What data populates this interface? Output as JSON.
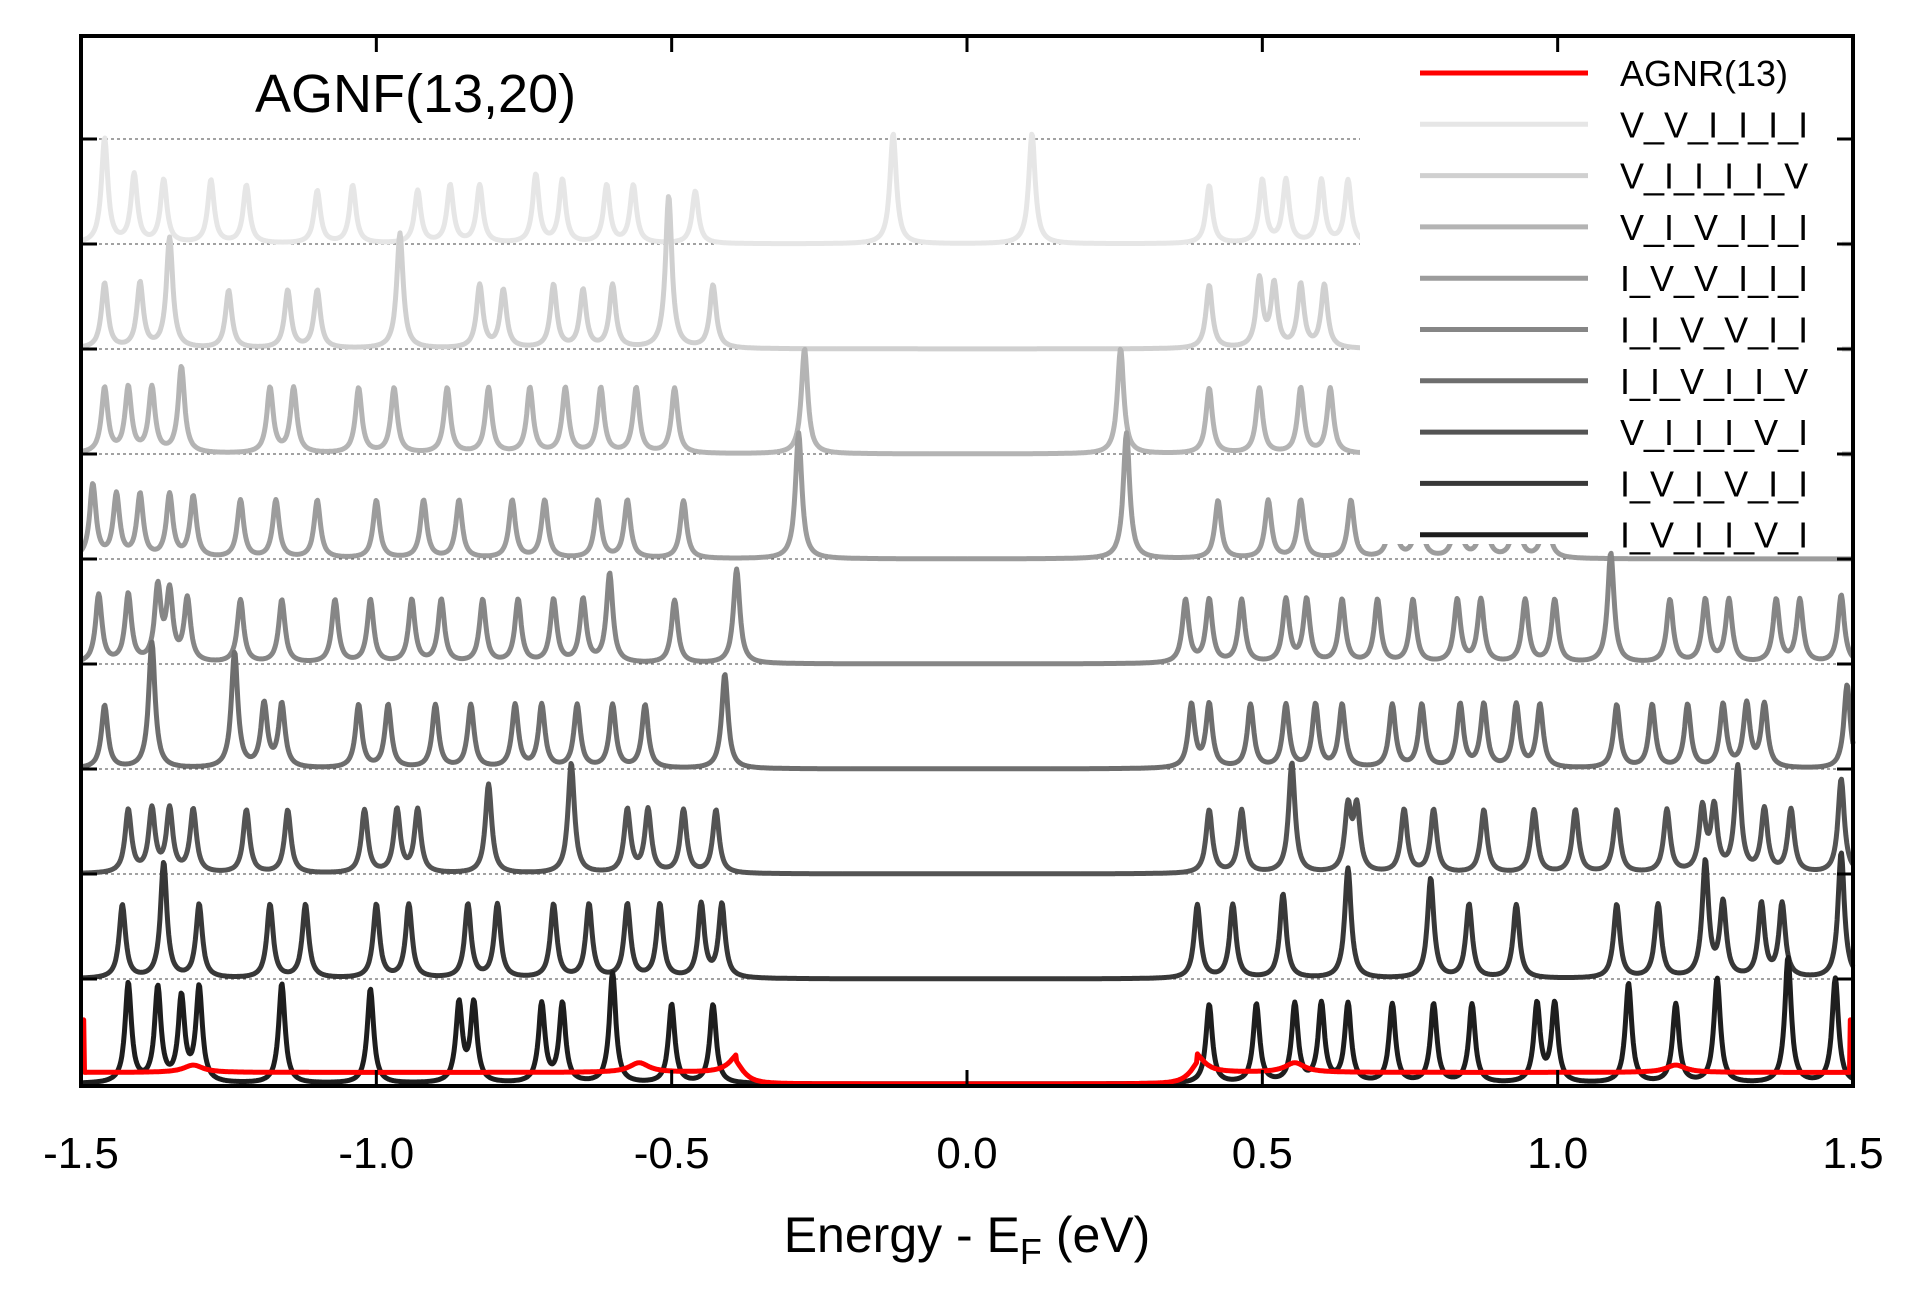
{
  "chart_data": {
    "type": "line",
    "title": "AGNF(13,20)",
    "xlabel_main": "Energy - E",
    "xlabel_sub": "F",
    "xlabel_tail": " (eV)",
    "ylabel": "",
    "xlim": [
      -1.5,
      1.5
    ],
    "x_ticks": [
      -1.5,
      -1.0,
      -0.5,
      0.0,
      0.5,
      1.0,
      1.5
    ],
    "x_tick_labels": [
      "-1.5",
      "-1.0",
      "-0.5",
      "0.0",
      "0.5",
      "1.0",
      "1.5"
    ],
    "y_tick_labels_shown": false,
    "offset_step": 1,
    "legend_position": "top-right",
    "series": [
      {
        "name": "AGNR(13)",
        "color": "#ff0000",
        "offset": 0,
        "kind": "band",
        "band_edge": 0.39,
        "peaks": [
          [
            -1.31,
            0.2
          ],
          [
            -0.555,
            0.26
          ],
          [
            -0.39,
            0.3
          ],
          [
            0.39,
            0.3
          ],
          [
            0.555,
            0.26
          ],
          [
            1.2,
            0.2
          ]
        ]
      },
      {
        "name": "V_V_I_I_I_I",
        "color": "#e6e6e6",
        "offset": 8,
        "peaks": [
          [
            -1.46,
            1.0
          ],
          [
            -1.41,
            0.65
          ],
          [
            -1.36,
            0.6
          ],
          [
            -1.28,
            0.6
          ],
          [
            -1.22,
            0.55
          ],
          [
            -1.1,
            0.5
          ],
          [
            -1.04,
            0.55
          ],
          [
            -0.93,
            0.5
          ],
          [
            -0.875,
            0.55
          ],
          [
            -0.825,
            0.55
          ],
          [
            -0.73,
            0.65
          ],
          [
            -0.685,
            0.6
          ],
          [
            -0.61,
            0.55
          ],
          [
            -0.565,
            0.55
          ],
          [
            -0.46,
            0.5
          ],
          [
            -0.125,
            1.05
          ],
          [
            0.11,
            1.05
          ],
          [
            0.41,
            0.55
          ],
          [
            0.5,
            0.6
          ],
          [
            0.54,
            0.6
          ],
          [
            0.6,
            0.6
          ],
          [
            0.645,
            0.6
          ]
        ]
      },
      {
        "name": "V_I_I_I_I_V",
        "color": "#d0d0d0",
        "offset": 7,
        "peaks": [
          [
            -1.46,
            0.62
          ],
          [
            -1.4,
            0.62
          ],
          [
            -1.35,
            1.05
          ],
          [
            -1.25,
            0.55
          ],
          [
            -1.15,
            0.55
          ],
          [
            -1.1,
            0.55
          ],
          [
            -0.96,
            1.1
          ],
          [
            -0.825,
            0.6
          ],
          [
            -0.785,
            0.55
          ],
          [
            -0.7,
            0.6
          ],
          [
            -0.65,
            0.55
          ],
          [
            -0.6,
            0.6
          ],
          [
            -0.505,
            1.45
          ],
          [
            -0.43,
            0.6
          ],
          [
            0.41,
            0.6
          ],
          [
            0.495,
            0.65
          ],
          [
            0.52,
            0.6
          ],
          [
            0.565,
            0.6
          ],
          [
            0.605,
            0.6
          ]
        ]
      },
      {
        "name": "V_I_V_I_I_I",
        "color": "#b4b4b4",
        "offset": 6,
        "peaks": [
          [
            -1.46,
            0.62
          ],
          [
            -1.42,
            0.62
          ],
          [
            -1.38,
            0.62
          ],
          [
            -1.33,
            0.82
          ],
          [
            -1.18,
            0.62
          ],
          [
            -1.14,
            0.62
          ],
          [
            -1.03,
            0.62
          ],
          [
            -0.97,
            0.62
          ],
          [
            -0.88,
            0.62
          ],
          [
            -0.81,
            0.62
          ],
          [
            -0.74,
            0.62
          ],
          [
            -0.68,
            0.62
          ],
          [
            -0.62,
            0.62
          ],
          [
            -0.56,
            0.62
          ],
          [
            -0.495,
            0.62
          ],
          [
            -0.275,
            1.0
          ],
          [
            0.26,
            1.0
          ],
          [
            0.41,
            0.62
          ],
          [
            0.495,
            0.62
          ],
          [
            0.565,
            0.62
          ],
          [
            0.615,
            0.62
          ]
        ]
      },
      {
        "name": "I_V_V_I_I_I",
        "color": "#9c9c9c",
        "offset": 5,
        "peaks": [
          [
            -1.48,
            0.7
          ],
          [
            -1.44,
            0.6
          ],
          [
            -1.4,
            0.6
          ],
          [
            -1.35,
            0.6
          ],
          [
            -1.31,
            0.58
          ],
          [
            -1.23,
            0.55
          ],
          [
            -1.17,
            0.55
          ],
          [
            -1.1,
            0.55
          ],
          [
            -1.0,
            0.55
          ],
          [
            -0.92,
            0.55
          ],
          [
            -0.86,
            0.55
          ],
          [
            -0.77,
            0.55
          ],
          [
            -0.715,
            0.55
          ],
          [
            -0.625,
            0.55
          ],
          [
            -0.575,
            0.55
          ],
          [
            -0.48,
            0.55
          ],
          [
            -0.285,
            1.2
          ],
          [
            0.27,
            1.2
          ],
          [
            0.425,
            0.55
          ],
          [
            0.51,
            0.55
          ],
          [
            0.565,
            0.55
          ],
          [
            0.65,
            0.55
          ],
          [
            0.72,
            0.55
          ],
          [
            0.765,
            0.55
          ],
          [
            0.83,
            0.55
          ],
          [
            0.875,
            0.55
          ],
          [
            0.93,
            0.55
          ],
          [
            0.98,
            0.55
          ]
        ]
      },
      {
        "name": "I_I_V_V_I_I",
        "color": "#868686",
        "offset": 4,
        "peaks": [
          [
            -1.47,
            0.65
          ],
          [
            -1.42,
            0.65
          ],
          [
            -1.37,
            0.7
          ],
          [
            -1.35,
            0.65
          ],
          [
            -1.32,
            0.6
          ],
          [
            -1.23,
            0.6
          ],
          [
            -1.16,
            0.6
          ],
          [
            -1.07,
            0.6
          ],
          [
            -1.01,
            0.6
          ],
          [
            -0.94,
            0.6
          ],
          [
            -0.89,
            0.6
          ],
          [
            -0.82,
            0.6
          ],
          [
            -0.76,
            0.6
          ],
          [
            -0.7,
            0.6
          ],
          [
            -0.65,
            0.6
          ],
          [
            -0.605,
            0.85
          ],
          [
            -0.495,
            0.6
          ],
          [
            -0.39,
            0.9
          ],
          [
            0.37,
            0.6
          ],
          [
            0.41,
            0.6
          ],
          [
            0.465,
            0.6
          ],
          [
            0.54,
            0.6
          ],
          [
            0.575,
            0.6
          ],
          [
            0.635,
            0.6
          ],
          [
            0.695,
            0.6
          ],
          [
            0.755,
            0.6
          ],
          [
            0.83,
            0.6
          ],
          [
            0.87,
            0.6
          ],
          [
            0.945,
            0.6
          ],
          [
            0.995,
            0.6
          ],
          [
            1.09,
            1.05
          ],
          [
            1.19,
            0.6
          ],
          [
            1.25,
            0.6
          ],
          [
            1.29,
            0.6
          ],
          [
            1.37,
            0.6
          ],
          [
            1.41,
            0.6
          ],
          [
            1.48,
            0.65
          ]
        ]
      },
      {
        "name": "I_I_V_I_I_V",
        "color": "#6e6e6e",
        "offset": 3,
        "peaks": [
          [
            -1.46,
            0.6
          ],
          [
            -1.38,
            1.2
          ],
          [
            -1.24,
            1.1
          ],
          [
            -1.19,
            0.6
          ],
          [
            -1.16,
            0.6
          ],
          [
            -1.03,
            0.6
          ],
          [
            -0.98,
            0.6
          ],
          [
            -0.9,
            0.6
          ],
          [
            -0.84,
            0.6
          ],
          [
            -0.765,
            0.6
          ],
          [
            -0.72,
            0.6
          ],
          [
            -0.66,
            0.6
          ],
          [
            -0.6,
            0.6
          ],
          [
            -0.545,
            0.6
          ],
          [
            -0.41,
            0.9
          ],
          [
            0.38,
            0.6
          ],
          [
            0.41,
            0.6
          ],
          [
            0.48,
            0.6
          ],
          [
            0.54,
            0.6
          ],
          [
            0.59,
            0.6
          ],
          [
            0.635,
            0.6
          ],
          [
            0.72,
            0.6
          ],
          [
            0.77,
            0.6
          ],
          [
            0.835,
            0.6
          ],
          [
            0.875,
            0.6
          ],
          [
            0.93,
            0.6
          ],
          [
            0.97,
            0.6
          ],
          [
            1.1,
            0.6
          ],
          [
            1.16,
            0.6
          ],
          [
            1.22,
            0.6
          ],
          [
            1.28,
            0.6
          ],
          [
            1.32,
            0.6
          ],
          [
            1.35,
            0.6
          ],
          [
            1.49,
            0.8
          ]
        ]
      },
      {
        "name": "V_I_I_I_V_I",
        "color": "#545454",
        "offset": 2,
        "peaks": [
          [
            -1.42,
            0.6
          ],
          [
            -1.38,
            0.6
          ],
          [
            -1.35,
            0.6
          ],
          [
            -1.31,
            0.6
          ],
          [
            -1.22,
            0.6
          ],
          [
            -1.15,
            0.6
          ],
          [
            -1.02,
            0.6
          ],
          [
            -0.965,
            0.6
          ],
          [
            -0.93,
            0.6
          ],
          [
            -0.81,
            0.85
          ],
          [
            -0.67,
            1.05
          ],
          [
            -0.575,
            0.6
          ],
          [
            -0.54,
            0.6
          ],
          [
            -0.48,
            0.6
          ],
          [
            -0.425,
            0.6
          ],
          [
            0.41,
            0.6
          ],
          [
            0.465,
            0.6
          ],
          [
            0.55,
            1.05
          ],
          [
            0.645,
            0.6
          ],
          [
            0.66,
            0.6
          ],
          [
            0.74,
            0.6
          ],
          [
            0.79,
            0.6
          ],
          [
            0.875,
            0.6
          ],
          [
            0.96,
            0.6
          ],
          [
            1.03,
            0.6
          ],
          [
            1.1,
            0.6
          ],
          [
            1.185,
            0.6
          ],
          [
            1.245,
            0.6
          ],
          [
            1.265,
            0.6
          ],
          [
            1.305,
            1.0
          ],
          [
            1.35,
            0.6
          ],
          [
            1.395,
            0.6
          ],
          [
            1.48,
            0.9
          ]
        ]
      },
      {
        "name": "I_V_I_V_I_I",
        "color": "#383838",
        "offset": 1,
        "peaks": [
          [
            -1.43,
            0.7
          ],
          [
            -1.36,
            1.1
          ],
          [
            -1.3,
            0.7
          ],
          [
            -1.18,
            0.7
          ],
          [
            -1.12,
            0.7
          ],
          [
            -1.0,
            0.7
          ],
          [
            -0.945,
            0.7
          ],
          [
            -0.845,
            0.7
          ],
          [
            -0.795,
            0.7
          ],
          [
            -0.7,
            0.7
          ],
          [
            -0.64,
            0.7
          ],
          [
            -0.575,
            0.7
          ],
          [
            -0.52,
            0.7
          ],
          [
            -0.45,
            0.7
          ],
          [
            -0.415,
            0.7
          ],
          [
            0.39,
            0.7
          ],
          [
            0.45,
            0.7
          ],
          [
            0.535,
            0.8
          ],
          [
            0.645,
            1.05
          ],
          [
            0.785,
            0.95
          ],
          [
            0.85,
            0.7
          ],
          [
            0.93,
            0.7
          ],
          [
            1.1,
            0.7
          ],
          [
            1.17,
            0.7
          ],
          [
            1.25,
            1.1
          ],
          [
            1.28,
            0.7
          ],
          [
            1.345,
            0.7
          ],
          [
            1.38,
            0.7
          ],
          [
            1.48,
            1.2
          ]
        ]
      },
      {
        "name": "I_V_I_I_V_I",
        "color": "#1e1e1e",
        "offset": 0,
        "peaks": [
          [
            -1.42,
            0.95
          ],
          [
            -1.37,
            0.9
          ],
          [
            -1.33,
            0.8
          ],
          [
            -1.3,
            0.9
          ],
          [
            -1.16,
            0.95
          ],
          [
            -1.01,
            0.9
          ],
          [
            -0.86,
            0.75
          ],
          [
            -0.835,
            0.75
          ],
          [
            -0.72,
            0.75
          ],
          [
            -0.685,
            0.75
          ],
          [
            -0.6,
            1.05
          ],
          [
            -0.5,
            0.75
          ],
          [
            -0.43,
            0.75
          ],
          [
            0.41,
            0.75
          ],
          [
            0.49,
            0.75
          ],
          [
            0.555,
            0.75
          ],
          [
            0.6,
            0.75
          ],
          [
            0.645,
            0.75
          ],
          [
            0.72,
            0.75
          ],
          [
            0.79,
            0.75
          ],
          [
            0.855,
            0.75
          ],
          [
            0.965,
            0.75
          ],
          [
            0.995,
            0.75
          ],
          [
            1.12,
            0.95
          ],
          [
            1.2,
            0.75
          ],
          [
            1.27,
            1.0
          ],
          [
            1.39,
            1.2
          ],
          [
            1.47,
            1.0
          ]
        ]
      }
    ]
  }
}
